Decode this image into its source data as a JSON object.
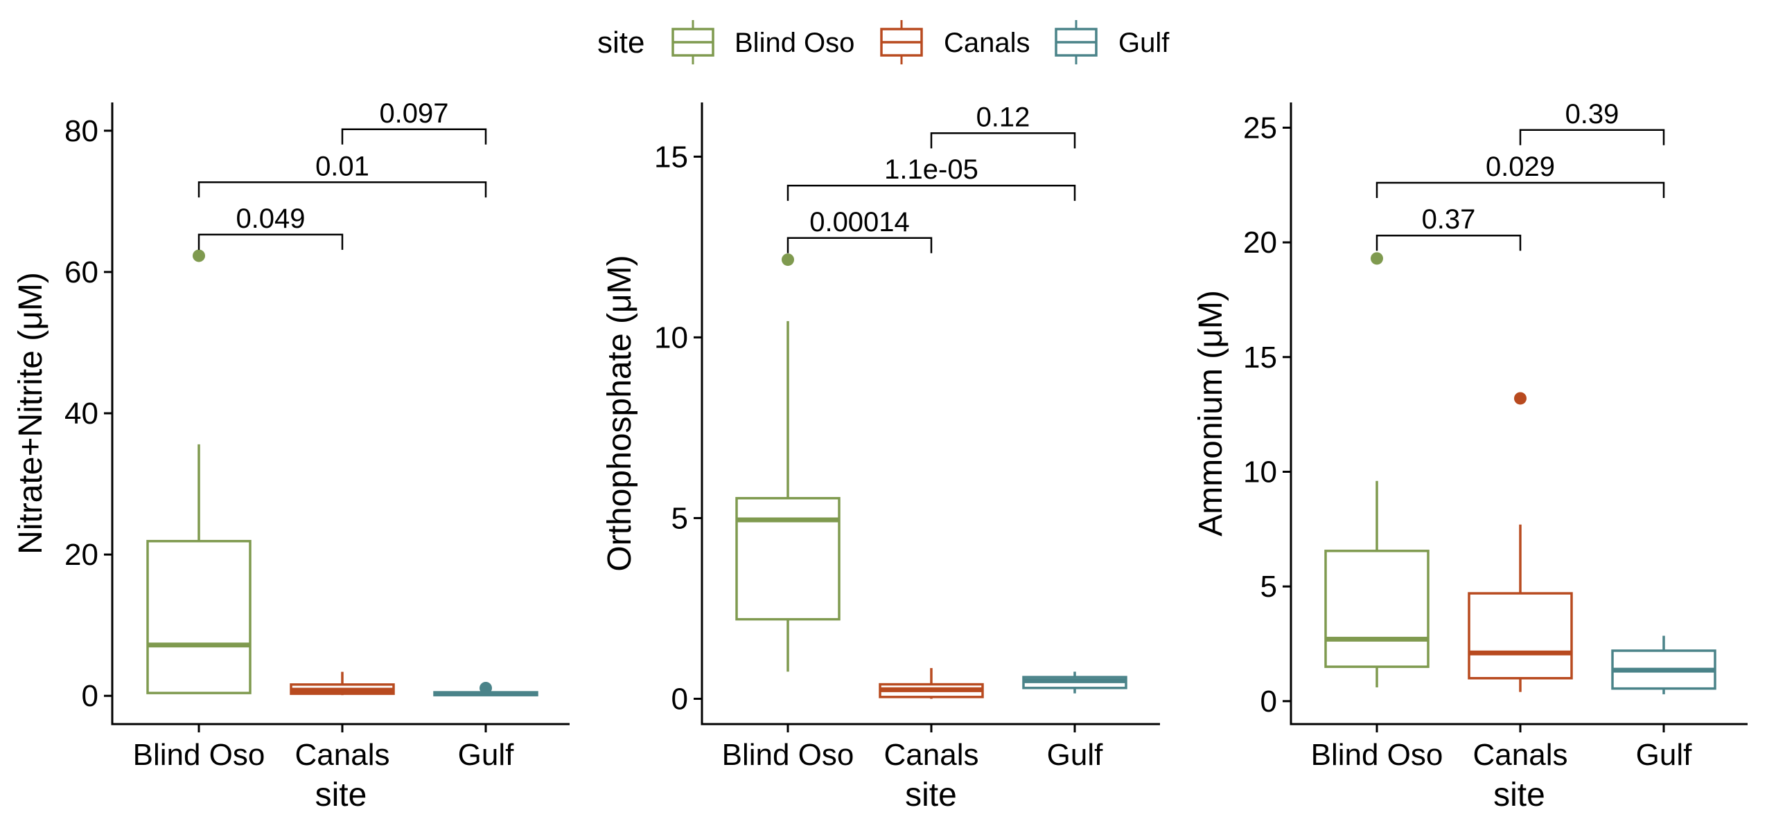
{
  "legend": {
    "title": "site",
    "items": [
      {
        "label": "Blind Oso",
        "color": "#7f9a4f"
      },
      {
        "label": "Canals",
        "color": "#b84a1f"
      },
      {
        "label": "Gulf",
        "color": "#4a8389"
      }
    ]
  },
  "chart_data": [
    {
      "type": "boxplot",
      "xlabel": "site",
      "ylabel": "Nitrate+Nitrite (μM)",
      "ylim": [
        -4,
        84
      ],
      "yticks": [
        0,
        20,
        40,
        60,
        80
      ],
      "categories": [
        "Blind Oso",
        "Canals",
        "Gulf"
      ],
      "boxes": [
        {
          "category": "Blind Oso",
          "min": 0.4,
          "q1": 0.4,
          "median": 7.2,
          "q3": 21.9,
          "max": 35.6,
          "outliers": [
            62.3
          ]
        },
        {
          "category": "Canals",
          "min": 0.1,
          "q1": 0.3,
          "median": 0.8,
          "q3": 1.6,
          "max": 3.4,
          "outliers": []
        },
        {
          "category": "Gulf",
          "min": 0.1,
          "q1": 0.1,
          "median": 0.3,
          "q3": 0.5,
          "max": 0.7,
          "outliers": [
            1.1
          ]
        }
      ],
      "comparisons": [
        {
          "from": "Blind Oso",
          "to": "Canals",
          "label": "0.049",
          "y": 65.3
        },
        {
          "from": "Blind Oso",
          "to": "Gulf",
          "label": "0.01",
          "y": 72.7
        },
        {
          "from": "Canals",
          "to": "Gulf",
          "label": "0.097",
          "y": 80.2
        }
      ]
    },
    {
      "type": "boxplot",
      "xlabel": "site",
      "ylabel": "Orthophosphate (μM)",
      "ylim": [
        -0.7,
        16.5
      ],
      "yticks": [
        0,
        5,
        10,
        15
      ],
      "categories": [
        "Blind Oso",
        "Canals",
        "Gulf"
      ],
      "boxes": [
        {
          "category": "Blind Oso",
          "min": 0.75,
          "q1": 2.2,
          "median": 4.95,
          "q3": 5.55,
          "max": 10.45,
          "outliers": [
            12.15
          ]
        },
        {
          "category": "Canals",
          "min": 0.0,
          "q1": 0.05,
          "median": 0.25,
          "q3": 0.4,
          "max": 0.85,
          "outliers": []
        },
        {
          "category": "Gulf",
          "min": 0.15,
          "q1": 0.3,
          "median": 0.5,
          "q3": 0.6,
          "max": 0.75,
          "outliers": []
        }
      ],
      "comparisons": [
        {
          "from": "Blind Oso",
          "to": "Canals",
          "label": "0.00014",
          "y": 12.75
        },
        {
          "from": "Blind Oso",
          "to": "Gulf",
          "label": "1.1e-05",
          "y": 14.2
        },
        {
          "from": "Canals",
          "to": "Gulf",
          "label": "0.12",
          "y": 15.65
        }
      ]
    },
    {
      "type": "boxplot",
      "xlabel": "site",
      "ylabel": "Ammonium (μM)",
      "ylim": [
        -1,
        26.1
      ],
      "yticks": [
        0,
        5,
        10,
        15,
        20,
        25
      ],
      "categories": [
        "Blind Oso",
        "Canals",
        "Gulf"
      ],
      "boxes": [
        {
          "category": "Blind Oso",
          "min": 0.6,
          "q1": 1.5,
          "median": 2.7,
          "q3": 6.55,
          "max": 9.6,
          "outliers": [
            19.3
          ]
        },
        {
          "category": "Canals",
          "min": 0.4,
          "q1": 1.0,
          "median": 2.1,
          "q3": 4.7,
          "max": 7.7,
          "outliers": [
            13.2
          ]
        },
        {
          "category": "Gulf",
          "min": 0.3,
          "q1": 0.55,
          "median": 1.35,
          "q3": 2.2,
          "max": 2.85,
          "outliers": []
        }
      ],
      "comparisons": [
        {
          "from": "Blind Oso",
          "to": "Canals",
          "label": "0.37",
          "y": 20.3
        },
        {
          "from": "Blind Oso",
          "to": "Gulf",
          "label": "0.029",
          "y": 22.6
        },
        {
          "from": "Canals",
          "to": "Gulf",
          "label": "0.39",
          "y": 24.9
        }
      ]
    }
  ]
}
